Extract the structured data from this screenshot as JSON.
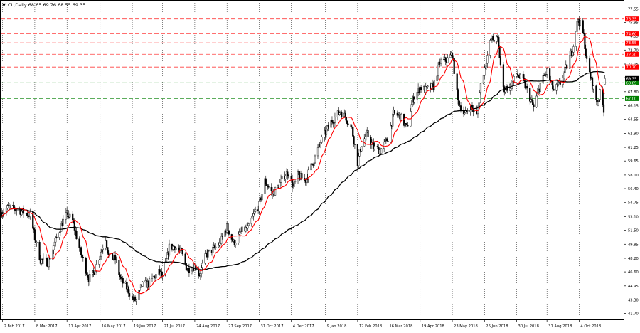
{
  "header": {
    "marker": "▼",
    "label": "CL,Daily  68.65 69.76 68.55 69.35"
  },
  "chart_data": {
    "type": "candlestick",
    "symbol": "CL",
    "timeframe": "Daily",
    "ohlc_last": {
      "open": 68.65,
      "high": 69.76,
      "low": 68.55,
      "close": 69.35
    },
    "y_range": [
      41.0,
      78.5
    ],
    "y_ticks": [
      77.55,
      75.95,
      74.35,
      72.7,
      71.05,
      69.45,
      67.8,
      66.15,
      64.55,
      62.9,
      61.25,
      59.65,
      58.0,
      56.4,
      54.75,
      53.1,
      51.5,
      49.85,
      48.2,
      46.6,
      44.95,
      43.3,
      41.7
    ],
    "x_labels": [
      {
        "label": "2 Feb 2017",
        "date": "2017-02-02"
      },
      {
        "label": "8 Mar 2017",
        "date": "2017-03-08"
      },
      {
        "label": "11 Apr 2017",
        "date": "2017-04-11"
      },
      {
        "label": "16 May 2017",
        "date": "2017-05-16"
      },
      {
        "label": "19 Jun 2017",
        "date": "2017-06-19"
      },
      {
        "label": "21 Jul 2017",
        "date": "2017-07-21"
      },
      {
        "label": "24 Aug 2017",
        "date": "2017-08-24"
      },
      {
        "label": "27 Sep 2017",
        "date": "2017-09-27"
      },
      {
        "label": "31 Oct 2017",
        "date": "2017-10-31"
      },
      {
        "label": "4 Dec 2017",
        "date": "2017-12-04"
      },
      {
        "label": "9 Jan 2018",
        "date": "2018-01-09"
      },
      {
        "label": "12 Feb 2018",
        "date": "2018-02-12"
      },
      {
        "label": "16 Mar 2018",
        "date": "2018-03-16"
      },
      {
        "label": "19 Apr 2018",
        "date": "2018-04-19"
      },
      {
        "label": "23 May 2018",
        "date": "2018-05-23"
      },
      {
        "label": "26 Jun 2018",
        "date": "2018-06-26"
      },
      {
        "label": "30 Jul 2018",
        "date": "2018-07-30"
      },
      {
        "label": "31 Aug 2018",
        "date": "2018-08-31"
      },
      {
        "label": "4 Oct 2018",
        "date": "2018-10-04"
      }
    ],
    "price_path": [
      [
        "2017-02-01",
        53.6
      ],
      [
        "2017-02-08",
        54.2
      ],
      [
        "2017-02-20",
        53.8
      ],
      [
        "2017-03-03",
        53.3
      ],
      [
        "2017-03-08",
        50.6
      ],
      [
        "2017-03-14",
        48.0
      ],
      [
        "2017-03-22",
        47.7
      ],
      [
        "2017-03-30",
        50.3
      ],
      [
        "2017-04-06",
        52.4
      ],
      [
        "2017-04-11",
        53.4
      ],
      [
        "2017-04-17",
        52.6
      ],
      [
        "2017-04-24",
        49.4
      ],
      [
        "2017-05-04",
        45.8
      ],
      [
        "2017-05-09",
        46.4
      ],
      [
        "2017-05-16",
        48.7
      ],
      [
        "2017-05-22",
        50.6
      ],
      [
        "2017-05-25",
        48.4
      ],
      [
        "2017-06-01",
        48.1
      ],
      [
        "2017-06-07",
        45.6
      ],
      [
        "2017-06-14",
        44.6
      ],
      [
        "2017-06-19",
        43.4
      ],
      [
        "2017-06-23",
        43.2
      ],
      [
        "2017-06-29",
        45.0
      ],
      [
        "2017-07-06",
        45.2
      ],
      [
        "2017-07-12",
        46.0
      ],
      [
        "2017-07-18",
        46.6
      ],
      [
        "2017-07-21",
        45.8
      ],
      [
        "2017-07-28",
        49.5
      ],
      [
        "2017-08-03",
        49.6
      ],
      [
        "2017-08-10",
        48.8
      ],
      [
        "2017-08-16",
        46.9
      ],
      [
        "2017-08-24",
        47.3
      ],
      [
        "2017-08-29",
        46.3
      ],
      [
        "2017-09-05",
        48.6
      ],
      [
        "2017-09-13",
        49.3
      ],
      [
        "2017-09-19",
        49.9
      ],
      [
        "2017-09-27",
        51.9
      ],
      [
        "2017-10-04",
        50.0
      ],
      [
        "2017-10-13",
        51.4
      ],
      [
        "2017-10-20",
        51.8
      ],
      [
        "2017-10-27",
        53.8
      ],
      [
        "2017-10-31",
        54.4
      ],
      [
        "2017-11-06",
        57.3
      ],
      [
        "2017-11-14",
        55.8
      ],
      [
        "2017-11-20",
        56.6
      ],
      [
        "2017-11-27",
        58.0
      ],
      [
        "2017-12-01",
        58.3
      ],
      [
        "2017-12-06",
        56.5
      ],
      [
        "2017-12-11",
        57.9
      ],
      [
        "2017-12-19",
        57.4
      ],
      [
        "2017-12-28",
        59.8
      ],
      [
        "2018-01-04",
        61.9
      ],
      [
        "2018-01-09",
        63.0
      ],
      [
        "2018-01-15",
        64.3
      ],
      [
        "2018-01-25",
        65.5
      ],
      [
        "2018-01-31",
        64.7
      ],
      [
        "2018-02-06",
        63.4
      ],
      [
        "2018-02-12",
        59.5
      ],
      [
        "2018-02-16",
        61.7
      ],
      [
        "2018-02-22",
        62.8
      ],
      [
        "2018-03-01",
        61.2
      ],
      [
        "2018-03-08",
        60.9
      ],
      [
        "2018-03-16",
        62.3
      ],
      [
        "2018-03-22",
        65.2
      ],
      [
        "2018-03-29",
        64.9
      ],
      [
        "2018-04-05",
        63.5
      ],
      [
        "2018-04-11",
        66.8
      ],
      [
        "2018-04-19",
        68.3
      ],
      [
        "2018-04-25",
        68.0
      ],
      [
        "2018-05-03",
        68.4
      ],
      [
        "2018-05-10",
        71.3
      ],
      [
        "2018-05-17",
        71.5
      ],
      [
        "2018-05-23",
        72.2
      ],
      [
        "2018-05-29",
        66.7
      ],
      [
        "2018-06-05",
        65.1
      ],
      [
        "2018-06-11",
        66.1
      ],
      [
        "2018-06-18",
        65.0
      ],
      [
        "2018-06-22",
        68.6
      ],
      [
        "2018-06-26",
        70.6
      ],
      [
        "2018-07-03",
        74.0
      ],
      [
        "2018-07-10",
        73.9
      ],
      [
        "2018-07-16",
        68.1
      ],
      [
        "2018-07-24",
        68.5
      ],
      [
        "2018-07-30",
        69.9
      ],
      [
        "2018-08-06",
        69.0
      ],
      [
        "2018-08-13",
        67.1
      ],
      [
        "2018-08-17",
        65.9
      ],
      [
        "2018-08-24",
        68.7
      ],
      [
        "2018-08-31",
        70.2
      ],
      [
        "2018-09-07",
        67.9
      ],
      [
        "2018-09-14",
        68.8
      ],
      [
        "2018-09-21",
        70.8
      ],
      [
        "2018-09-28",
        73.3
      ],
      [
        "2018-10-03",
        76.4
      ],
      [
        "2018-10-09",
        74.3
      ],
      [
        "2018-10-12",
        71.3
      ],
      [
        "2018-10-18",
        68.6
      ],
      [
        "2018-10-23",
        66.4
      ],
      [
        "2018-10-26",
        67.6
      ],
      [
        "2018-10-31",
        65.3
      ]
    ],
    "overlays": [
      {
        "name": "fast moving average",
        "color": "#ff0000"
      },
      {
        "name": "slow moving average",
        "color": "#000000"
      }
    ],
    "horizontal_levels": [
      {
        "price": 76.35,
        "label": "76.35",
        "style": "red-dashed"
      },
      {
        "price": 74.6,
        "label": "74.60",
        "style": "red-dashed"
      },
      {
        "price": 73.55,
        "label": "73.55",
        "style": "red-dashed"
      },
      {
        "price": 72.2,
        "label": "72.20",
        "style": "red-dashed"
      },
      {
        "price": 70.7,
        "label": "70.70",
        "style": "red-dashed"
      },
      {
        "price": 68.85,
        "label": "68.85",
        "style": "green-dashed"
      },
      {
        "price": 67.0,
        "label": "67.00",
        "style": "green-dashed"
      }
    ],
    "current_price": {
      "price": 69.35,
      "label": "69.35"
    },
    "grid": "vertical dotted",
    "colors": {
      "background": "#ffffff",
      "candle": "#000000",
      "fast_ma": "#ff0000",
      "slow_ma": "#000000",
      "resistance": "#ff0000",
      "support": "#008000",
      "level_tag_red": "#ff0000",
      "level_tag_green": "#008000"
    }
  }
}
